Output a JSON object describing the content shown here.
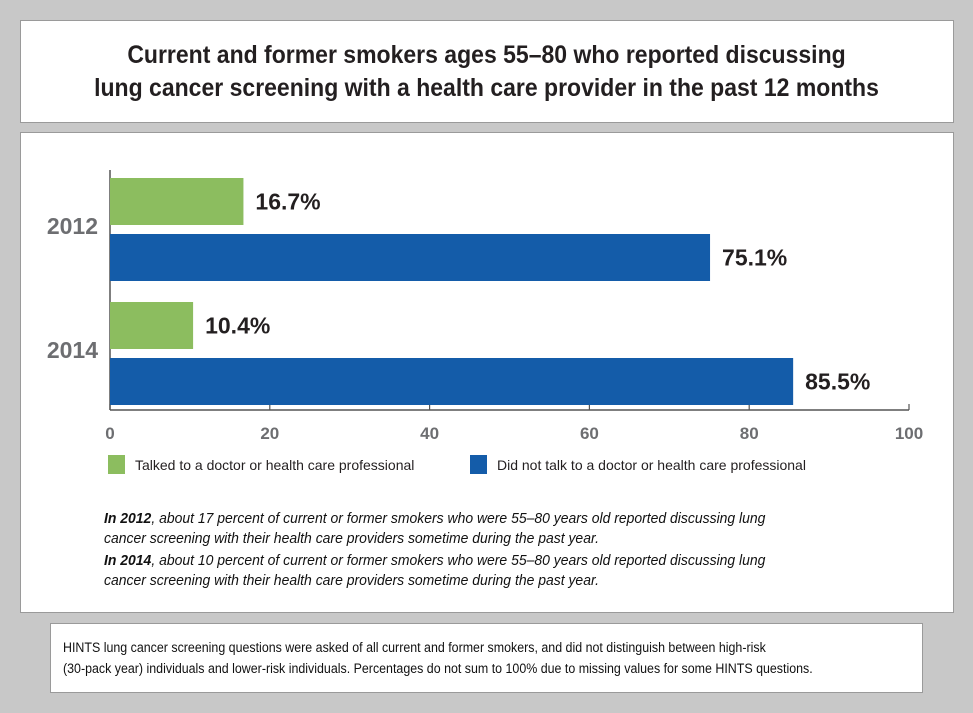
{
  "title": {
    "line1": "Current and former smokers ages 55–80 who reported discussing",
    "line2": "lung cancer screening with a health care provider in the past 12 months"
  },
  "chart_data": {
    "type": "bar",
    "orientation": "horizontal",
    "title": "Current and former smokers ages 55–80 who reported discussing lung cancer screening with a health care provider in the past 12 months",
    "categories": [
      "2012",
      "2014"
    ],
    "series": [
      {
        "name": "Talked to a doctor or health care professional",
        "color": "#8cbd5f",
        "values": [
          16.7,
          10.4
        ],
        "labels": [
          "16.7%",
          "10.4%"
        ]
      },
      {
        "name": "Did not talk to a doctor or health care professional",
        "color": "#145ca9",
        "values": [
          75.1,
          85.5
        ],
        "labels": [
          "75.1%",
          "85.5%"
        ]
      }
    ],
    "xlim": [
      0,
      100
    ],
    "xticks": [
      0,
      20,
      40,
      60,
      80,
      100
    ],
    "xlabel": "",
    "ylabel": "",
    "grid": false,
    "legend_position": "bottom"
  },
  "descriptions": [
    {
      "bold": "In 2012",
      "line1": ", about 17 percent of current or former smokers who were 55–80 years old reported discussing lung",
      "line2": "cancer screening with their health care providers sometime during the past year."
    },
    {
      "bold": "In 2014",
      "line1": ", about 10 percent of current or former smokers who were 55–80 years old reported discussing lung",
      "line2": "cancer screening with their health care providers sometime during the past year."
    }
  ],
  "note": {
    "line1": "HINTS lung cancer screening questions were asked of all current and former smokers, and did not distinguish between high-risk",
    "line2": "(30-pack year) individuals and lower-risk individuals. Percentages do not sum to 100% due to missing values for some HINTS questions."
  }
}
